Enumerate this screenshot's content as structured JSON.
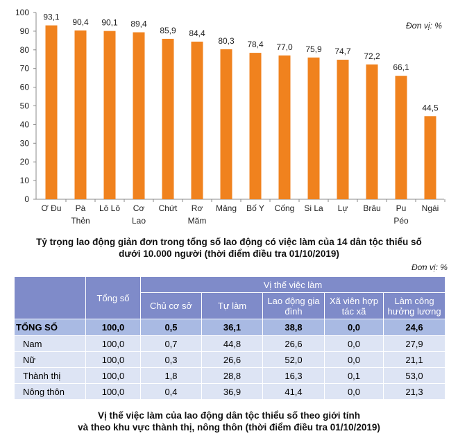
{
  "chart_data": {
    "type": "bar",
    "title": "Tỷ trọng lao động giản đơn trong tổng số lao động có việc làm của 14 dân tộc thiểu số dưới 10.000 người (thời điểm điều tra 01/10/2019)",
    "title_lines": [
      "Tỷ trọng lao động giản đơn trong tổng số lao động có việc làm của 14 dân tộc thiểu số",
      "dưới 10.000 người (thời điểm điều tra 01/10/2019)"
    ],
    "unit": "Đơn vị: %",
    "categories": [
      [
        "Ơ Đu"
      ],
      [
        "Pà",
        "Thẻn"
      ],
      [
        "Lô Lô"
      ],
      [
        "Cơ",
        "Lao"
      ],
      [
        "Chứt"
      ],
      [
        "Rơ",
        "Măm"
      ],
      [
        "Mảng"
      ],
      [
        "Bố Y"
      ],
      [
        "Cống"
      ],
      [
        "Si La"
      ],
      [
        "Lự"
      ],
      [
        "Brâu"
      ],
      [
        "Pu",
        "Péo"
      ],
      [
        "Ngái"
      ]
    ],
    "values": [
      93.1,
      90.4,
      90.1,
      89.4,
      85.9,
      84.4,
      80.3,
      78.4,
      77.0,
      75.9,
      74.7,
      72.2,
      66.1,
      44.5
    ],
    "value_labels": [
      "93,1",
      "90,4",
      "90,1",
      "89,4",
      "85,9",
      "84,4",
      "80,3",
      "78,4",
      "77,0",
      "75,9",
      "74,7",
      "72,2",
      "66,1",
      "44,5"
    ],
    "yticks": [
      0,
      10,
      20,
      30,
      40,
      50,
      60,
      70,
      80,
      90,
      100
    ],
    "ylim": [
      0,
      100
    ],
    "bar_color": "#f0821e",
    "grid": false
  },
  "table": {
    "unit": "Đơn vị: %",
    "header_total": "Tổng số",
    "header_group": "Vị thế việc làm",
    "columns": [
      "Chủ cơ sở",
      "Tự làm",
      "Lao động gia đình",
      "Xã viên hợp tác xã",
      "Làm công hưởng lương"
    ],
    "rows": [
      {
        "label": "TỔNG SỐ",
        "values": [
          "100,0",
          "0,5",
          "36,1",
          "38,8",
          "0,0",
          "24,6"
        ]
      },
      {
        "label": "Nam",
        "values": [
          "100,0",
          "0,7",
          "44,8",
          "26,6",
          "0,0",
          "27,9"
        ]
      },
      {
        "label": "Nữ",
        "values": [
          "100,0",
          "0,3",
          "26,6",
          "52,0",
          "0,0",
          "21,1"
        ]
      },
      {
        "label": "Thành thị",
        "values": [
          "100,0",
          "1,8",
          "28,8",
          "16,3",
          "0,1",
          "53,0"
        ]
      },
      {
        "label": "Nông thôn",
        "values": [
          "100,0",
          "0,4",
          "36,9",
          "41,4",
          "0,0",
          "21,3"
        ]
      }
    ],
    "caption_lines": [
      "Vị thế việc làm của lao động dân tộc thiểu số theo giới tính",
      "và theo khu vực thành thị, nông thôn (thời điểm điều tra 01/10/2019)"
    ]
  }
}
